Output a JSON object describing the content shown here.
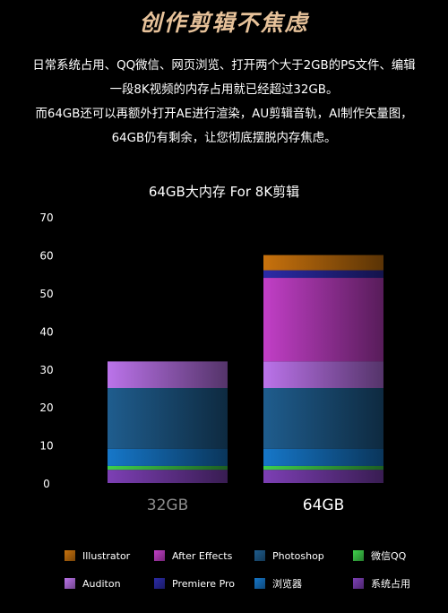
{
  "headline": "创作剪辑不焦虑",
  "description": [
    "日常系统占用、QQ微信、网页浏览、打开两个大于2GB的PS文件、编辑",
    "一段8K视频的内存占用就已经超过32GB。",
    "而64GB还可以再额外打开AE进行渲染，AU剪辑音轨，AI制作矢量图，",
    "64GB仍有剩余，让您彻底摆脱内存焦虑。"
  ],
  "chart_data": {
    "type": "bar",
    "stacked": true,
    "title": "64GB大内存 For 8K剪辑",
    "categories": [
      "32GB",
      "64GB"
    ],
    "ylim": [
      0,
      70
    ],
    "yticks": [
      0,
      10,
      20,
      30,
      40,
      50,
      60,
      70
    ],
    "series": [
      {
        "name": "系统占用",
        "color": "#7d3fb5",
        "values": [
          3.5,
          3.5
        ]
      },
      {
        "name": "微信QQ",
        "color": "#3fd14c",
        "values": [
          1,
          1
        ]
      },
      {
        "name": "浏览器",
        "color": "#1677c9",
        "values": [
          4.5,
          4.5
        ]
      },
      {
        "name": "Photoshop",
        "color": "#1f5d8e",
        "values": [
          16,
          16
        ]
      },
      {
        "name": "Auditon",
        "color": "#bb73ea",
        "values": [
          7,
          7
        ]
      },
      {
        "name": "After Effects",
        "color": "#c23fc7",
        "values": [
          0,
          22
        ]
      },
      {
        "name": "Premiere Pro",
        "color": "#2b2ba7",
        "values": [
          0,
          2
        ]
      },
      {
        "name": "Illustrator",
        "color": "#c8720d",
        "values": [
          0,
          4
        ]
      }
    ],
    "legend_order": [
      "Illustrator",
      "After Effects",
      "Photoshop",
      "微信QQ",
      "Auditon",
      "Premiere Pro",
      "浏览器",
      "系统占用"
    ],
    "legend_position": "bottom"
  }
}
